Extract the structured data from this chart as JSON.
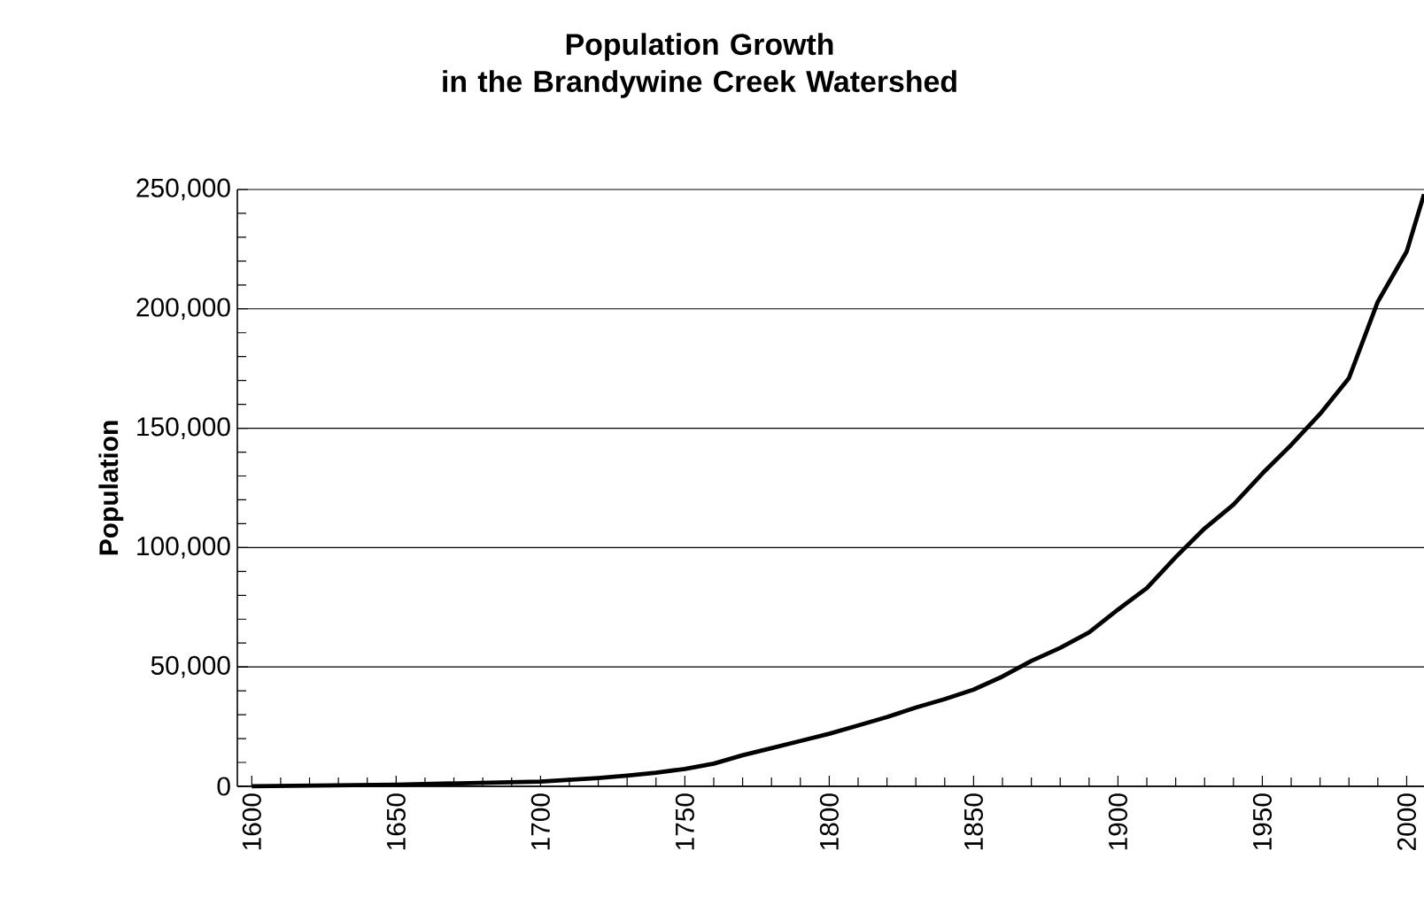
{
  "chart_data": {
    "type": "line",
    "title": "Population Growth\nin the Brandywine Creek Watershed",
    "ylabel": "Population",
    "x": [
      1600,
      1650,
      1700,
      1710,
      1720,
      1730,
      1740,
      1750,
      1760,
      1770,
      1780,
      1790,
      1800,
      1810,
      1820,
      1830,
      1840,
      1850,
      1860,
      1870,
      1880,
      1890,
      1900,
      1910,
      1920,
      1930,
      1940,
      1950,
      1960,
      1970,
      1980,
      1990,
      2000,
      2006
    ],
    "series": [
      {
        "color": "#000000",
        "values": [
          0,
          700,
          2000,
          2700,
          3500,
          4500,
          5700,
          7300,
          9500,
          13000,
          16000,
          19000,
          22000,
          25500,
          29000,
          33000,
          36500,
          40500,
          46000,
          52500,
          58000,
          64500,
          74000,
          83000,
          96000,
          108000,
          118000,
          131000,
          143000,
          156000,
          171000,
          203000,
          224000,
          248000
        ]
      }
    ],
    "xlim": [
      1595,
      2006
    ],
    "ylim": [
      0,
      250000
    ],
    "xticks": [
      1600,
      1650,
      1700,
      1750,
      1800,
      1850,
      1900,
      1950,
      2000
    ],
    "yticks": [
      0,
      {
        "value": 50000,
        "label": "50,000"
      },
      {
        "value": 100000,
        "label": "100,000"
      },
      {
        "value": 150000,
        "label": "150,000"
      },
      {
        "value": 200000,
        "label": "200,000"
      },
      {
        "value": 250000,
        "label": "250,000"
      }
    ],
    "grid": "y",
    "marker": "none",
    "line_style": "solid"
  }
}
